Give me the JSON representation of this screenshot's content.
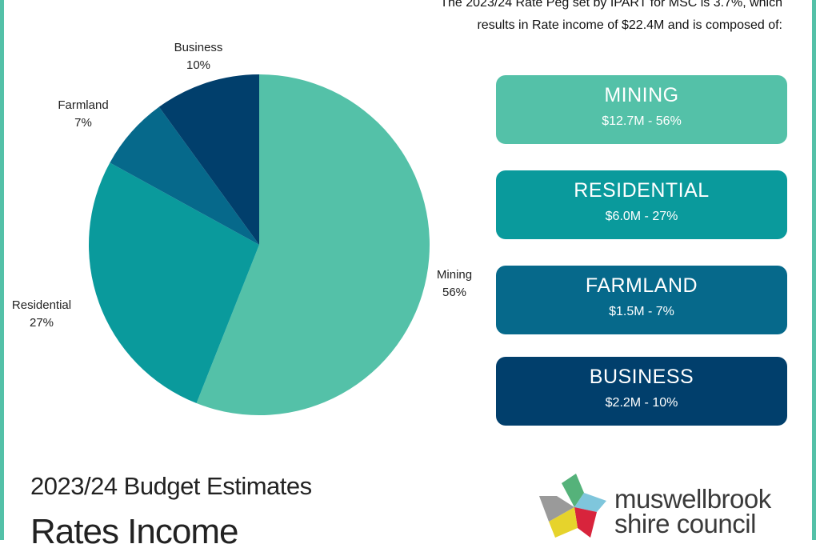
{
  "intro_line1": "The 2023/24 Rate Peg set by IPART for MSC is 3.7%, which",
  "intro_line2": "results in Rate income of $22.4M and is composed of:",
  "chart_data": {
    "type": "pie",
    "slices": [
      {
        "label": "Mining",
        "value": 56,
        "pct_label": "56%",
        "color": "#54c1a8"
      },
      {
        "label": "Residential",
        "value": 27,
        "pct_label": "27%",
        "color": "#0a9a9c"
      },
      {
        "label": "Farmland",
        "value": 7,
        "pct_label": "7%",
        "color": "#06698b"
      },
      {
        "label": "Business",
        "value": 10,
        "pct_label": "10%",
        "color": "#013f6c"
      }
    ]
  },
  "cards": [
    {
      "name": "MINING",
      "value": "$12.7M - 56%",
      "color": "#54c1a8"
    },
    {
      "name": "RESIDENTIAL",
      "value": "$6.0M - 27%",
      "color": "#0a9a9c"
    },
    {
      "name": "FARMLAND",
      "value": "$1.5M - 7%",
      "color": "#06698b"
    },
    {
      "name": "BUSINESS",
      "value": "$2.2M - 10%",
      "color": "#013f6c"
    }
  ],
  "footer": {
    "subtitle": "2023/24 Budget Estimates",
    "title": "Rates Income"
  },
  "logo": {
    "line1": "muswellbrook",
    "line2": "shire council"
  }
}
